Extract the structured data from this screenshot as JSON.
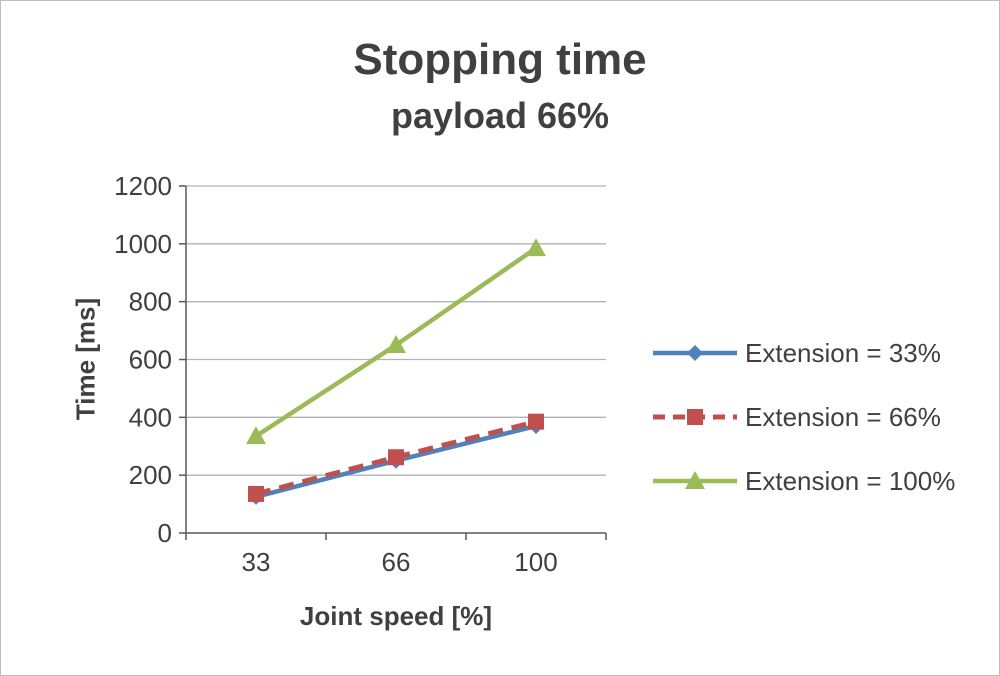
{
  "chart_data": {
    "type": "line",
    "title": "Stopping time",
    "subtitle": "payload 66%",
    "xlabel": "Joint speed [%]",
    "ylabel": "Time [ms]",
    "categories": [
      33,
      66,
      100
    ],
    "series": [
      {
        "name": "Extension = 33%",
        "values": [
          125,
          250,
          370
        ],
        "color": "#4F81BD",
        "marker": "diamond",
        "dash": "solid"
      },
      {
        "name": "Extension = 66%",
        "values": [
          135,
          262,
          385
        ],
        "color": "#C0504D",
        "marker": "square",
        "dash": "dashed"
      },
      {
        "name": "Extension = 100%",
        "values": [
          335,
          650,
          985
        ],
        "color": "#9BBB59",
        "marker": "triangle",
        "dash": "solid"
      }
    ],
    "ylim": [
      0,
      1200
    ],
    "y_tick_step": 200,
    "grid": true,
    "legend_position": "right",
    "colors": {
      "grid": "#B3B3B3",
      "axis": "#595959",
      "text": "#3F3F3F",
      "title": "#404040"
    }
  }
}
